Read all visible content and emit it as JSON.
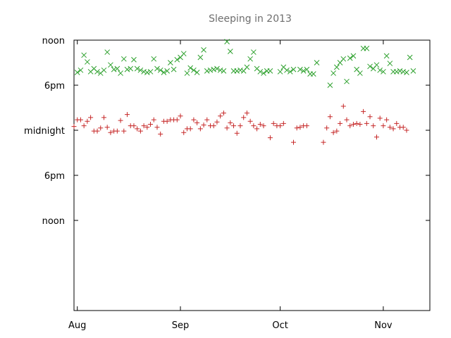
{
  "chart_data": {
    "type": "scatter",
    "title": "Sleeping in 2013",
    "xlabel": "",
    "ylabel": "",
    "x_axis": {
      "type": "date",
      "range": [
        "2013-07-31",
        "2013-11-15"
      ],
      "ticks": [
        {
          "value": "2013-08-01",
          "label": "Aug"
        },
        {
          "value": "2013-09-01",
          "label": "Sep"
        },
        {
          "value": "2013-10-01",
          "label": "Oct"
        },
        {
          "value": "2013-11-01",
          "label": "Nov"
        }
      ]
    },
    "y_axis": {
      "unit": "hours",
      "range": [
        -36,
        0
      ],
      "inverted": false,
      "ticks": [
        {
          "value": 0,
          "label": "noon"
        },
        {
          "value": -6,
          "label": "6pm"
        },
        {
          "value": -12,
          "label": "midnight"
        },
        {
          "value": -18,
          "label": "6pm"
        },
        {
          "value": -24,
          "label": "noon"
        }
      ]
    },
    "grid": false,
    "legend": "none",
    "series": [
      {
        "marker": "x",
        "color": "#2ca02c",
        "points": [
          [
            "2013-08-01",
            -4.3
          ],
          [
            "2013-08-02",
            -4.0
          ],
          [
            "2013-08-03",
            -2.0
          ],
          [
            "2013-08-04",
            -2.9
          ],
          [
            "2013-08-05",
            -4.2
          ],
          [
            "2013-08-06",
            -3.8
          ],
          [
            "2013-08-07",
            -4.2
          ],
          [
            "2013-08-08",
            -4.4
          ],
          [
            "2013-08-09",
            -4.0
          ],
          [
            "2013-08-10",
            -1.6
          ],
          [
            "2013-08-11",
            -3.3
          ],
          [
            "2013-08-12",
            -3.9
          ],
          [
            "2013-08-13",
            -3.8
          ],
          [
            "2013-08-14",
            -4.4
          ],
          [
            "2013-08-15",
            -2.5
          ],
          [
            "2013-08-16",
            -3.9
          ],
          [
            "2013-08-17",
            -3.8
          ],
          [
            "2013-08-18",
            -2.6
          ],
          [
            "2013-08-19",
            -3.8
          ],
          [
            "2013-08-20",
            -4.0
          ],
          [
            "2013-08-21",
            -4.2
          ],
          [
            "2013-08-22",
            -4.3
          ],
          [
            "2013-08-23",
            -4.2
          ],
          [
            "2013-08-24",
            -2.5
          ],
          [
            "2013-08-25",
            -3.8
          ],
          [
            "2013-08-26",
            -4.0
          ],
          [
            "2013-08-27",
            -4.3
          ],
          [
            "2013-08-28",
            -4.1
          ],
          [
            "2013-08-29",
            -3.0
          ],
          [
            "2013-08-30",
            -3.9
          ],
          [
            "2013-08-31",
            -2.6
          ],
          [
            "2013-09-01",
            -2.3
          ],
          [
            "2013-09-02",
            -1.8
          ],
          [
            "2013-09-03",
            -4.4
          ],
          [
            "2013-09-04",
            -3.7
          ],
          [
            "2013-09-05",
            -4.0
          ],
          [
            "2013-09-06",
            -4.3
          ],
          [
            "2013-09-07",
            -2.3
          ],
          [
            "2013-09-08",
            -1.3
          ],
          [
            "2013-09-09",
            -4.1
          ],
          [
            "2013-09-10",
            -4.0
          ],
          [
            "2013-09-11",
            -3.9
          ],
          [
            "2013-09-12",
            -3.8
          ],
          [
            "2013-09-13",
            -4.0
          ],
          [
            "2013-09-14",
            -4.1
          ],
          [
            "2013-09-15",
            -0.2
          ],
          [
            "2013-09-16",
            -1.5
          ],
          [
            "2013-09-17",
            -4.1
          ],
          [
            "2013-09-18",
            -4.1
          ],
          [
            "2013-09-19",
            -4.0
          ],
          [
            "2013-09-20",
            -4.1
          ],
          [
            "2013-09-21",
            -3.6
          ],
          [
            "2013-09-22",
            -2.5
          ],
          [
            "2013-09-23",
            -1.6
          ],
          [
            "2013-09-24",
            -3.8
          ],
          [
            "2013-09-25",
            -4.2
          ],
          [
            "2013-09-26",
            -4.4
          ],
          [
            "2013-09-27",
            -4.1
          ],
          [
            "2013-09-28",
            -4.1
          ],
          [
            "2013-10-01",
            -4.2
          ],
          [
            "2013-10-02",
            -3.6
          ],
          [
            "2013-10-03",
            -4.0
          ],
          [
            "2013-10-04",
            -4.2
          ],
          [
            "2013-10-05",
            -3.9
          ],
          [
            "2013-10-07",
            -3.9
          ],
          [
            "2013-10-08",
            -4.1
          ],
          [
            "2013-10-09",
            -3.9
          ],
          [
            "2013-10-10",
            -4.5
          ],
          [
            "2013-10-11",
            -4.5
          ],
          [
            "2013-10-12",
            -3.0
          ],
          [
            "2013-10-16",
            -6.0
          ],
          [
            "2013-10-17",
            -4.4
          ],
          [
            "2013-10-18",
            -3.6
          ],
          [
            "2013-10-19",
            -3.0
          ],
          [
            "2013-10-20",
            -2.5
          ],
          [
            "2013-10-21",
            -5.5
          ],
          [
            "2013-10-22",
            -2.4
          ],
          [
            "2013-10-23",
            -2.1
          ],
          [
            "2013-10-24",
            -3.9
          ],
          [
            "2013-10-25",
            -4.4
          ],
          [
            "2013-10-26",
            -1.1
          ],
          [
            "2013-10-27",
            -1.1
          ],
          [
            "2013-10-28",
            -3.5
          ],
          [
            "2013-10-29",
            -3.8
          ],
          [
            "2013-10-30",
            -3.3
          ],
          [
            "2013-10-31",
            -4.0
          ],
          [
            "2013-11-01",
            -4.2
          ],
          [
            "2013-11-02",
            -2.1
          ],
          [
            "2013-11-03",
            -3.1
          ],
          [
            "2013-11-04",
            -4.2
          ],
          [
            "2013-11-05",
            -4.2
          ],
          [
            "2013-11-06",
            -4.1
          ],
          [
            "2013-11-07",
            -4.2
          ],
          [
            "2013-11-08",
            -4.3
          ],
          [
            "2013-11-09",
            -2.3
          ],
          [
            "2013-11-10",
            -4.1
          ]
        ]
      },
      {
        "marker": "+",
        "color": "#c62828",
        "points": [
          [
            "2013-07-31",
            -11.5
          ],
          [
            "2013-08-01",
            -10.6
          ],
          [
            "2013-08-02",
            -10.6
          ],
          [
            "2013-08-03",
            -11.4
          ],
          [
            "2013-08-04",
            -10.8
          ],
          [
            "2013-08-05",
            -10.3
          ],
          [
            "2013-08-06",
            -12.1
          ],
          [
            "2013-08-07",
            -12.1
          ],
          [
            "2013-08-08",
            -11.7
          ],
          [
            "2013-08-09",
            -10.3
          ],
          [
            "2013-08-10",
            -11.6
          ],
          [
            "2013-08-11",
            -12.3
          ],
          [
            "2013-08-12",
            -12.1
          ],
          [
            "2013-08-13",
            -12.1
          ],
          [
            "2013-08-14",
            -10.7
          ],
          [
            "2013-08-15",
            -12.1
          ],
          [
            "2013-08-16",
            -9.9
          ],
          [
            "2013-08-17",
            -11.4
          ],
          [
            "2013-08-18",
            -11.4
          ],
          [
            "2013-08-19",
            -11.8
          ],
          [
            "2013-08-20",
            -12.1
          ],
          [
            "2013-08-21",
            -11.4
          ],
          [
            "2013-08-22",
            -11.6
          ],
          [
            "2013-08-23",
            -11.2
          ],
          [
            "2013-08-24",
            -10.6
          ],
          [
            "2013-08-25",
            -11.6
          ],
          [
            "2013-08-26",
            -12.5
          ],
          [
            "2013-08-27",
            -10.8
          ],
          [
            "2013-08-28",
            -10.8
          ],
          [
            "2013-08-29",
            -10.6
          ],
          [
            "2013-08-30",
            -10.6
          ],
          [
            "2013-08-31",
            -10.6
          ],
          [
            "2013-09-01",
            -10.1
          ],
          [
            "2013-09-02",
            -12.3
          ],
          [
            "2013-09-03",
            -11.8
          ],
          [
            "2013-09-04",
            -11.8
          ],
          [
            "2013-09-05",
            -10.6
          ],
          [
            "2013-09-06",
            -11.0
          ],
          [
            "2013-09-07",
            -11.8
          ],
          [
            "2013-09-08",
            -11.3
          ],
          [
            "2013-09-09",
            -10.6
          ],
          [
            "2013-09-10",
            -11.4
          ],
          [
            "2013-09-11",
            -11.4
          ],
          [
            "2013-09-12",
            -10.9
          ],
          [
            "2013-09-13",
            -10.1
          ],
          [
            "2013-09-14",
            -9.7
          ],
          [
            "2013-09-15",
            -11.7
          ],
          [
            "2013-09-16",
            -11.0
          ],
          [
            "2013-09-17",
            -11.4
          ],
          [
            "2013-09-18",
            -12.4
          ],
          [
            "2013-09-19",
            -11.4
          ],
          [
            "2013-09-20",
            -10.3
          ],
          [
            "2013-09-21",
            -9.7
          ],
          [
            "2013-09-22",
            -10.8
          ],
          [
            "2013-09-23",
            -11.4
          ],
          [
            "2013-09-24",
            -11.8
          ],
          [
            "2013-09-25",
            -11.2
          ],
          [
            "2013-09-26",
            -11.4
          ],
          [
            "2013-09-28",
            -13.0
          ],
          [
            "2013-09-29",
            -11.1
          ],
          [
            "2013-09-30",
            -11.4
          ],
          [
            "2013-10-01",
            -11.4
          ],
          [
            "2013-10-02",
            -11.1
          ],
          [
            "2013-10-05",
            -13.6
          ],
          [
            "2013-10-06",
            -11.7
          ],
          [
            "2013-10-07",
            -11.6
          ],
          [
            "2013-10-08",
            -11.4
          ],
          [
            "2013-10-09",
            -11.4
          ],
          [
            "2013-10-14",
            -13.6
          ],
          [
            "2013-10-15",
            -11.7
          ],
          [
            "2013-10-16",
            -10.2
          ],
          [
            "2013-10-17",
            -12.3
          ],
          [
            "2013-10-18",
            -12.1
          ],
          [
            "2013-10-19",
            -11.1
          ],
          [
            "2013-10-20",
            -8.8
          ],
          [
            "2013-10-21",
            -10.6
          ],
          [
            "2013-10-22",
            -11.4
          ],
          [
            "2013-10-23",
            -11.2
          ],
          [
            "2013-10-24",
            -11.1
          ],
          [
            "2013-10-25",
            -11.2
          ],
          [
            "2013-10-26",
            -9.5
          ],
          [
            "2013-10-27",
            -11.1
          ],
          [
            "2013-10-28",
            -10.2
          ],
          [
            "2013-10-29",
            -11.4
          ],
          [
            "2013-10-30",
            -12.9
          ],
          [
            "2013-10-31",
            -10.4
          ],
          [
            "2013-11-01",
            -11.4
          ],
          [
            "2013-11-02",
            -10.6
          ],
          [
            "2013-11-03",
            -11.6
          ],
          [
            "2013-11-04",
            -11.8
          ],
          [
            "2013-11-05",
            -11.1
          ],
          [
            "2013-11-06",
            -11.6
          ],
          [
            "2013-11-07",
            -11.6
          ],
          [
            "2013-11-08",
            -12.0
          ]
        ]
      }
    ]
  }
}
